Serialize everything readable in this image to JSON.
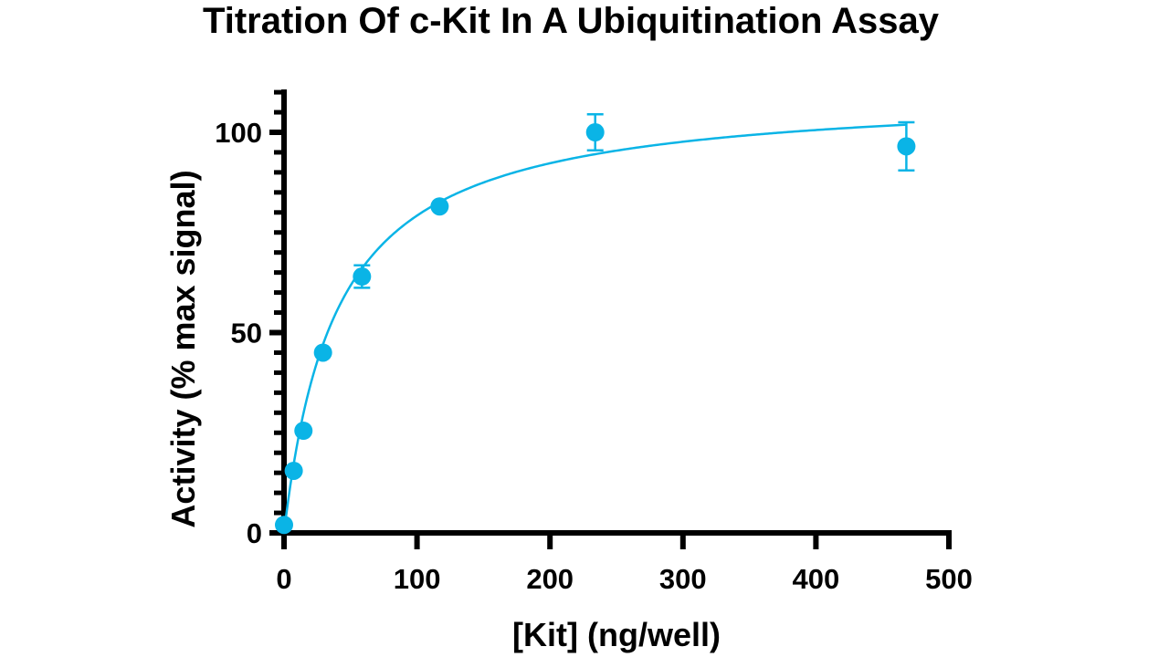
{
  "chart_data": {
    "type": "scatter",
    "title": "Titration Of c-Kit In A Ubiquitination Assay",
    "xlabel": "[Kit] (ng/well)",
    "ylabel": "Activity (% max signal)",
    "xlim": [
      0,
      500
    ],
    "ylim": [
      0,
      100
    ],
    "x_ticks": [
      0,
      100,
      200,
      300,
      400,
      500
    ],
    "y_ticks": [
      0,
      50,
      100
    ],
    "grid": false,
    "legend": "none",
    "color": "#0ab4e6",
    "series": [
      {
        "points": [
          {
            "x": 0,
            "y": 2,
            "err": 0
          },
          {
            "x": 7.3,
            "y": 15.5,
            "err": 0
          },
          {
            "x": 14.6,
            "y": 25.5,
            "err": 0
          },
          {
            "x": 29.3,
            "y": 45,
            "err": 0
          },
          {
            "x": 58.6,
            "y": 64,
            "err": 2.8
          },
          {
            "x": 117,
            "y": 81.5,
            "err": 0
          },
          {
            "x": 234,
            "y": 100,
            "err": 4.5
          },
          {
            "x": 468,
            "y": 96.5,
            "err": 6
          }
        ],
        "fit": {
          "model": "hyperbola",
          "bmax": 110.5,
          "kd": 39.5,
          "from": 0,
          "to": 468
        }
      }
    ]
  }
}
